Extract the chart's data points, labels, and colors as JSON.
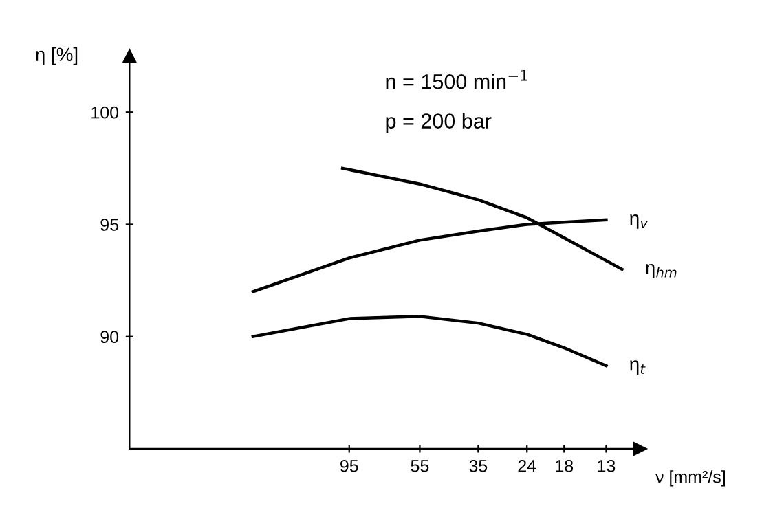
{
  "chart_data": {
    "type": "line",
    "ylabel": "η [%]",
    "xlabel": "ν [mm²/s]",
    "annotations": [
      "n = 1500 min$^{−1}$",
      "p = 200 bar"
    ],
    "log": "x",
    "xlim": [
      520,
      10
    ],
    "xticks": [
      95,
      55,
      35,
      24,
      18,
      13
    ],
    "ylim": [
      85,
      102.5
    ],
    "yticks": [
      90,
      95,
      100
    ],
    "grid": false,
    "legend": false,
    "marker": "none",
    "line_style": "solid",
    "series": [
      {
        "name": "η$_{v}$",
        "color": "#000000",
        "x": [
          200,
          95,
          55,
          35,
          24,
          18,
          13
        ],
        "values": [
          92.0,
          93.5,
          94.3,
          94.7,
          95.0,
          95.1,
          95.2
        ]
      },
      {
        "name": "η$_{hm}$",
        "color": "#000000",
        "x": [
          100,
          55,
          35,
          24,
          18,
          11.5
        ],
        "values": [
          97.5,
          96.8,
          96.1,
          95.3,
          94.4,
          93.0
        ]
      },
      {
        "name": "η$_{t}$",
        "color": "#000000",
        "x": [
          200,
          95,
          55,
          35,
          24,
          18,
          13
        ],
        "values": [
          90.0,
          90.8,
          90.9,
          90.6,
          90.1,
          89.5,
          88.7
        ]
      }
    ]
  }
}
